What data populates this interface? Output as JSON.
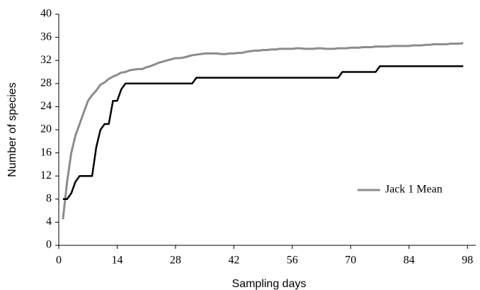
{
  "chart_data": {
    "type": "line",
    "x_label": "Sampling days",
    "y_label": "Number of species",
    "x": [
      1,
      2,
      3,
      4,
      5,
      6,
      7,
      8,
      9,
      10,
      11,
      12,
      13,
      14,
      15,
      16,
      17,
      18,
      19,
      20,
      21,
      22,
      23,
      24,
      25,
      26,
      27,
      28,
      29,
      30,
      31,
      32,
      33,
      34,
      35,
      36,
      37,
      38,
      39,
      40,
      41,
      42,
      43,
      44,
      45,
      46,
      47,
      48,
      49,
      50,
      51,
      52,
      53,
      54,
      55,
      56,
      57,
      58,
      59,
      60,
      61,
      62,
      63,
      64,
      65,
      66,
      67,
      68,
      69,
      70,
      71,
      72,
      73,
      74,
      75,
      76,
      77,
      78,
      79,
      80,
      81,
      82,
      83,
      84,
      85,
      86,
      87,
      88,
      89,
      90,
      91,
      92,
      93,
      94,
      95,
      96,
      97
    ],
    "series": [
      {
        "name": "Jack 1 Mean",
        "color": "#8c8c8c",
        "values": [
          4.5,
          11,
          16,
          19,
          21,
          23,
          25,
          26,
          26.8,
          27.8,
          28.2,
          28.8,
          29.2,
          29.5,
          29.9,
          30,
          30.3,
          30.4,
          30.5,
          30.5,
          30.8,
          31,
          31.3,
          31.6,
          31.8,
          32,
          32.2,
          32.4,
          32.4,
          32.5,
          32.7,
          32.9,
          33,
          33.1,
          33.2,
          33.2,
          33.2,
          33.2,
          33.1,
          33.1,
          33.2,
          33.2,
          33.3,
          33.3,
          33.5,
          33.6,
          33.7,
          33.7,
          33.8,
          33.8,
          33.9,
          33.9,
          34,
          34,
          34,
          34,
          34.1,
          34.1,
          34,
          34,
          34,
          34.1,
          34.1,
          34,
          34,
          34,
          34.1,
          34.1,
          34.1,
          34.2,
          34.2,
          34.2,
          34.3,
          34.3,
          34.3,
          34.4,
          34.4,
          34.4,
          34.4,
          34.5,
          34.5,
          34.5,
          34.5,
          34.5,
          34.6,
          34.6,
          34.6,
          34.7,
          34.7,
          34.8,
          34.8,
          34.8,
          34.8,
          34.9,
          34.9,
          34.9,
          35
        ]
      },
      {
        "color": "#000000",
        "values": [
          8,
          8,
          9,
          11,
          12,
          12,
          12,
          12,
          17,
          20,
          21,
          21,
          25,
          25,
          27,
          28,
          28,
          28,
          28,
          28,
          28,
          28,
          28,
          28,
          28,
          28,
          28,
          28,
          28,
          28,
          28,
          28,
          29,
          29,
          29,
          29,
          29,
          29,
          29,
          29,
          29,
          29,
          29,
          29,
          29,
          29,
          29,
          29,
          29,
          29,
          29,
          29,
          29,
          29,
          29,
          29,
          29,
          29,
          29,
          29,
          29,
          29,
          29,
          29,
          29,
          29,
          29,
          30,
          30,
          30,
          30,
          30,
          30,
          30,
          30,
          30,
          31,
          31,
          31,
          31,
          31,
          31,
          31,
          31,
          31,
          31,
          31,
          31,
          31,
          31,
          31,
          31,
          31,
          31,
          31,
          31,
          31
        ]
      }
    ],
    "xlim": [
      0,
      100
    ],
    "xticks": [
      0,
      14,
      28,
      42,
      56,
      70,
      84,
      98
    ],
    "ylim": [
      0,
      40
    ],
    "yticks": [
      0,
      4,
      8,
      12,
      16,
      20,
      24,
      28,
      32,
      36,
      40
    ],
    "grid": false,
    "legend": "right"
  }
}
